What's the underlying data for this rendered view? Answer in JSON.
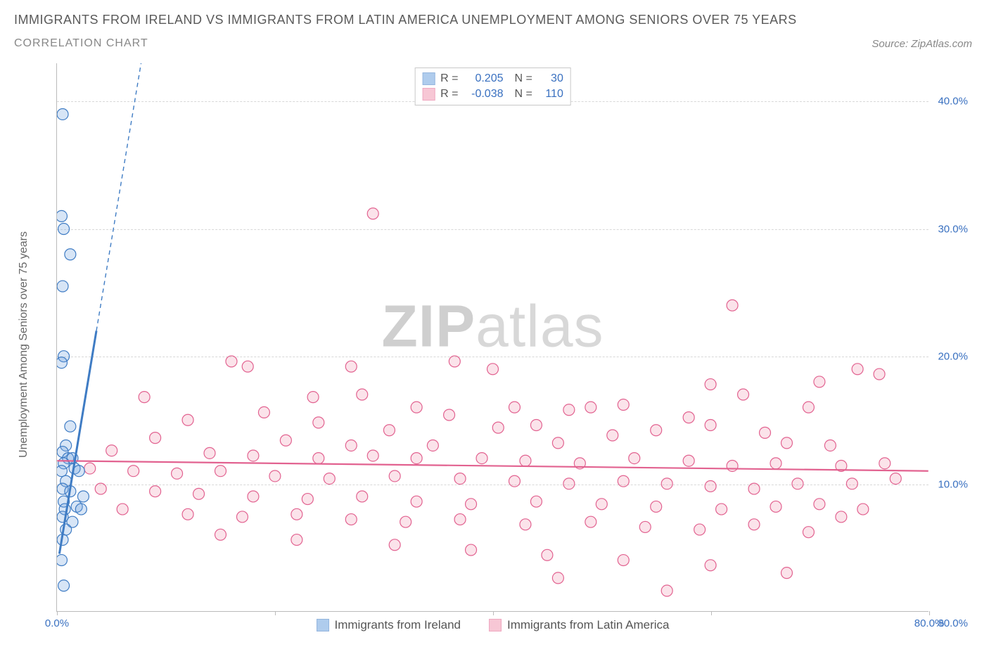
{
  "title": "IMMIGRANTS FROM IRELAND VS IMMIGRANTS FROM LATIN AMERICA UNEMPLOYMENT AMONG SENIORS OVER 75 YEARS",
  "subtitle": "CORRELATION CHART",
  "source_label": "Source:",
  "source_name": "ZipAtlas.com",
  "y_axis_title": "Unemployment Among Seniors over 75 years",
  "watermark_a": "ZIP",
  "watermark_b": "atlas",
  "chart": {
    "type": "scatter",
    "xlim": [
      0,
      80
    ],
    "ylim": [
      0,
      43
    ],
    "x_ticks": [
      0,
      20,
      40,
      60,
      80
    ],
    "x_tick_labels": [
      "0.0%",
      "",
      "",
      "",
      "80.0%"
    ],
    "y_ticks": [
      10,
      20,
      30,
      40
    ],
    "y_tick_labels": [
      "10.0%",
      "20.0%",
      "30.0%",
      "40.0%"
    ],
    "grid_color": "#d8d8d8",
    "axis_color": "#bbbbbb",
    "background_color": "#ffffff",
    "marker_radius": 8,
    "marker_opacity": 0.28
  },
  "series": [
    {
      "name": "Immigrants from Ireland",
      "color_fill": "#6fa3e0",
      "color_stroke": "#3f7cc4",
      "R": "0.205",
      "N": "30",
      "trend": {
        "x1": 0.2,
        "y1": 4.5,
        "x2": 3.6,
        "y2": 22,
        "dashed_to": {
          "x": 12,
          "y": 65
        }
      },
      "points": [
        [
          0.5,
          39
        ],
        [
          0.4,
          31
        ],
        [
          0.6,
          30
        ],
        [
          1.2,
          28
        ],
        [
          0.5,
          25.5
        ],
        [
          0.6,
          20
        ],
        [
          0.4,
          19.5
        ],
        [
          1.2,
          14.5
        ],
        [
          0.8,
          13
        ],
        [
          0.5,
          12.5
        ],
        [
          1.0,
          12
        ],
        [
          1.4,
          12
        ],
        [
          0.6,
          11.6
        ],
        [
          1.6,
          11.2
        ],
        [
          0.4,
          11
        ],
        [
          2.0,
          11
        ],
        [
          0.8,
          10.2
        ],
        [
          0.5,
          9.6
        ],
        [
          1.2,
          9.4
        ],
        [
          2.4,
          9
        ],
        [
          0.6,
          8.6
        ],
        [
          1.8,
          8.2
        ],
        [
          0.7,
          8
        ],
        [
          2.2,
          8
        ],
        [
          0.5,
          7.4
        ],
        [
          1.4,
          7
        ],
        [
          0.8,
          6.4
        ],
        [
          0.5,
          5.6
        ],
        [
          0.4,
          4
        ],
        [
          0.6,
          2
        ]
      ]
    },
    {
      "name": "Immigrants from Latin America",
      "color_fill": "#f29bb3",
      "color_stroke": "#e26290",
      "R": "-0.038",
      "N": "110",
      "trend": {
        "x1": 0,
        "y1": 11.8,
        "x2": 80,
        "y2": 11.0
      },
      "points": [
        [
          29,
          31.2
        ],
        [
          62,
          24
        ],
        [
          16,
          19.6
        ],
        [
          17.5,
          19.2
        ],
        [
          27,
          19.2
        ],
        [
          36.5,
          19.6
        ],
        [
          40,
          19
        ],
        [
          73.5,
          19
        ],
        [
          75.5,
          18.6
        ],
        [
          70,
          18
        ],
        [
          60,
          17.8
        ],
        [
          8,
          16.8
        ],
        [
          23.5,
          16.8
        ],
        [
          28,
          17
        ],
        [
          63,
          17
        ],
        [
          52,
          16.2
        ],
        [
          49,
          16
        ],
        [
          42,
          16
        ],
        [
          33,
          16
        ],
        [
          47,
          15.8
        ],
        [
          19,
          15.6
        ],
        [
          36,
          15.4
        ],
        [
          58,
          15.2
        ],
        [
          69,
          16
        ],
        [
          12,
          15
        ],
        [
          24,
          14.8
        ],
        [
          30.5,
          14.2
        ],
        [
          40.5,
          14.4
        ],
        [
          44,
          14.6
        ],
        [
          55,
          14.2
        ],
        [
          60,
          14.6
        ],
        [
          65,
          14
        ],
        [
          51,
          13.8
        ],
        [
          9,
          13.6
        ],
        [
          21,
          13.4
        ],
        [
          27,
          13
        ],
        [
          34.5,
          13
        ],
        [
          46,
          13.2
        ],
        [
          67,
          13.2
        ],
        [
          71,
          13
        ],
        [
          5,
          12.6
        ],
        [
          14,
          12.4
        ],
        [
          18,
          12.2
        ],
        [
          24,
          12
        ],
        [
          29,
          12.2
        ],
        [
          33,
          12
        ],
        [
          39,
          12
        ],
        [
          43,
          11.8
        ],
        [
          48,
          11.6
        ],
        [
          53,
          12
        ],
        [
          58,
          11.8
        ],
        [
          62,
          11.4
        ],
        [
          66,
          11.6
        ],
        [
          72,
          11.4
        ],
        [
          76,
          11.6
        ],
        [
          3,
          11.2
        ],
        [
          7,
          11
        ],
        [
          11,
          10.8
        ],
        [
          15,
          11
        ],
        [
          20,
          10.6
        ],
        [
          25,
          10.4
        ],
        [
          31,
          10.6
        ],
        [
          37,
          10.4
        ],
        [
          42,
          10.2
        ],
        [
          47,
          10
        ],
        [
          52,
          10.2
        ],
        [
          56,
          10
        ],
        [
          60,
          9.8
        ],
        [
          64,
          9.6
        ],
        [
          68,
          10
        ],
        [
          73,
          10
        ],
        [
          77,
          10.4
        ],
        [
          4,
          9.6
        ],
        [
          9,
          9.4
        ],
        [
          13,
          9.2
        ],
        [
          18,
          9
        ],
        [
          23,
          8.8
        ],
        [
          28,
          9
        ],
        [
          33,
          8.6
        ],
        [
          38,
          8.4
        ],
        [
          44,
          8.6
        ],
        [
          50,
          8.4
        ],
        [
          55,
          8.2
        ],
        [
          61,
          8
        ],
        [
          66,
          8.2
        ],
        [
          70,
          8.4
        ],
        [
          74,
          8
        ],
        [
          6,
          8
        ],
        [
          12,
          7.6
        ],
        [
          17,
          7.4
        ],
        [
          22,
          7.6
        ],
        [
          27,
          7.2
        ],
        [
          32,
          7
        ],
        [
          37,
          7.2
        ],
        [
          43,
          6.8
        ],
        [
          49,
          7
        ],
        [
          54,
          6.6
        ],
        [
          59,
          6.4
        ],
        [
          64,
          6.8
        ],
        [
          69,
          6.2
        ],
        [
          72,
          7.4
        ],
        [
          15,
          6
        ],
        [
          22,
          5.6
        ],
        [
          31,
          5.2
        ],
        [
          38,
          4.8
        ],
        [
          45,
          4.4
        ],
        [
          52,
          4
        ],
        [
          60,
          3.6
        ],
        [
          67,
          3
        ],
        [
          56,
          1.6
        ],
        [
          46,
          2.6
        ]
      ]
    }
  ],
  "legend_top": {
    "r_label": "R =",
    "n_label": "N ="
  },
  "bottom_legend_labels": [
    "Immigrants from Ireland",
    "Immigrants from Latin America"
  ]
}
